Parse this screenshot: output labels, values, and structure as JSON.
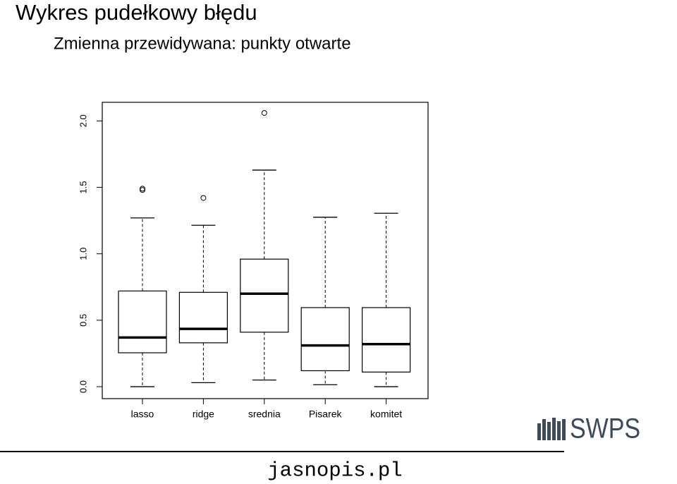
{
  "chart_data": {
    "type": "boxplot",
    "title": "Wykres pudełkowy błędu",
    "subtitle": "Zmienna przewidywana: punkty otwarte",
    "categories": [
      "lasso",
      "ridge",
      "srednia",
      "Pisarek",
      "komitet"
    ],
    "boxes": [
      {
        "whisker_low": 0.0,
        "q1": 0.255,
        "median": 0.37,
        "q3": 0.72,
        "whisker_high": 1.27,
        "outliers": [
          1.49,
          1.48
        ]
      },
      {
        "whisker_low": 0.03,
        "q1": 0.33,
        "median": 0.435,
        "q3": 0.71,
        "whisker_high": 1.215,
        "outliers": [
          1.42
        ]
      },
      {
        "whisker_low": 0.05,
        "q1": 0.41,
        "median": 0.7,
        "q3": 0.96,
        "whisker_high": 1.63,
        "outliers": [
          2.06
        ]
      },
      {
        "whisker_low": 0.015,
        "q1": 0.12,
        "median": 0.31,
        "q3": 0.595,
        "whisker_high": 1.275,
        "outliers": []
      },
      {
        "whisker_low": 0.0,
        "q1": 0.11,
        "median": 0.32,
        "q3": 0.595,
        "whisker_high": 1.305,
        "outliers": []
      }
    ],
    "color": "#000000",
    "ylim": [
      -0.09,
      2.14
    ],
    "yticks": [
      {
        "value": 0,
        "label": "0.0"
      },
      0.5,
      {
        "value": 1,
        "label": "1.0"
      },
      1.5,
      {
        "value": 2,
        "label": "2.0"
      }
    ]
  },
  "footer": {
    "site": "jasnopis.pl",
    "logo": "SWPS"
  }
}
